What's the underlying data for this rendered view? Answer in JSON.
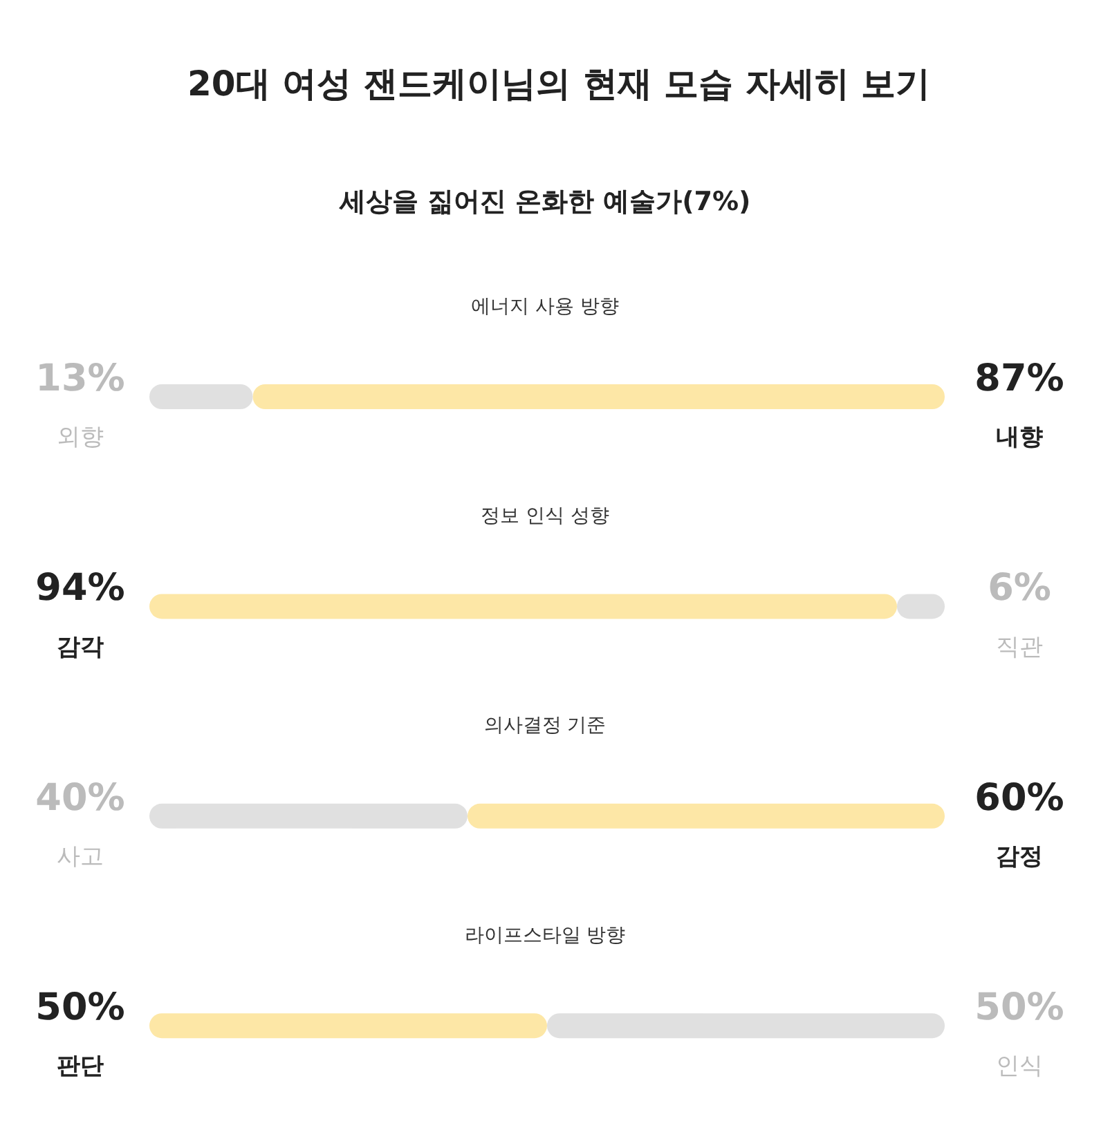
{
  "chart_data": {
    "type": "bar",
    "orientation": "horizontal",
    "stacked": true,
    "title": "20대 여성 잰드케이님의 현재 모습 자세히 보기",
    "subtitle": "세상을 짊어진 온화한 예술가(7%)",
    "categories": [
      "에너지 사용 방향",
      "정보 인식 성향",
      "의사결정 기준",
      "라이프스타일 방향"
    ],
    "xlim": [
      0,
      100
    ],
    "tick_labels": "y",
    "series": [
      {
        "values": [
          13,
          94,
          40,
          50
        ],
        "colors": [
          "#e0e0e0",
          "#fde7a6",
          "#e0e0e0",
          "#fde7a6"
        ],
        "value_labels": [
          "13%",
          "94%",
          "40%",
          "50%"
        ]
      },
      {
        "values": [
          87,
          6,
          60,
          50
        ],
        "colors": [
          "#fde7a6",
          "#e0e0e0",
          "#fde7a6",
          "#e0e0e0"
        ],
        "value_labels": [
          "87%",
          "6%",
          "60%",
          "50%"
        ]
      }
    ],
    "annotations": [
      "외향",
      "내향",
      "감각",
      "직관",
      "사고",
      "감정",
      "판단",
      "인식"
    ]
  }
}
